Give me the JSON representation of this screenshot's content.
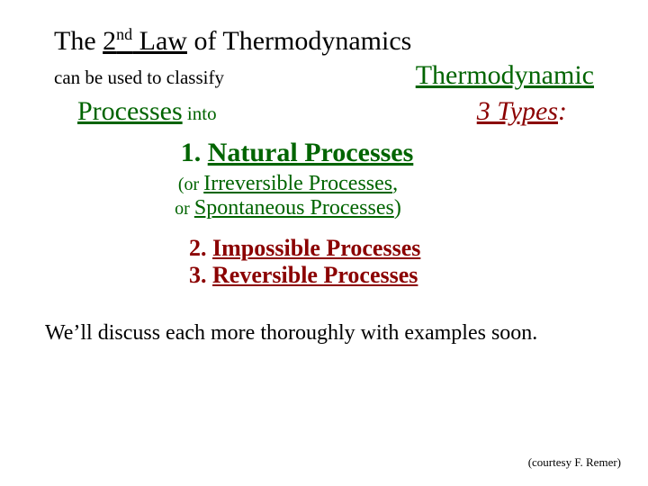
{
  "title": {
    "prefix": "The ",
    "law_num": "2",
    "law_sup": "nd",
    "law_word": " Law",
    "suffix": " of Thermodynamics"
  },
  "line2": {
    "classify": "can be used to classify",
    "thermo": "Thermodynamic"
  },
  "line3": {
    "processes": "Processes",
    "into": " into",
    "types_underlined": "3 Types",
    "types_colon": ":"
  },
  "natural": {
    "num": "1. ",
    "text": "Natural Processes"
  },
  "sub1": {
    "open": "(or ",
    "text": "Irreversible Processes",
    "close": ","
  },
  "sub2": {
    "open": "or ",
    "text": "Spontaneous Processes",
    "close": ")"
  },
  "impossible": {
    "num": "2. ",
    "text": "Impossible Processes"
  },
  "reversible": {
    "num": "3. ",
    "text": "Reversible Processes"
  },
  "discuss": "We’ll discuss each more thoroughly with examples soon.",
  "credit": "(courtesy F. Remer)",
  "colors": {
    "green": "#006400",
    "darkred": "#8b0000",
    "black": "#000000",
    "background": "#ffffff"
  }
}
